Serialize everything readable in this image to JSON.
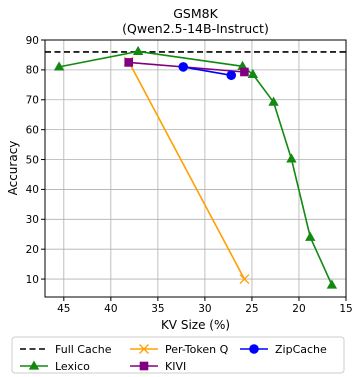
{
  "chart_data": {
    "type": "line",
    "title": "GSM8K",
    "subtitle": "(Qwen2.5-14B-Instruct)",
    "xlabel": "KV Size (%)",
    "ylabel": "Accuracy",
    "xlim": [
      47,
      15
    ],
    "ylim": [
      4,
      90
    ],
    "x_inverted": true,
    "xticks": [
      45,
      40,
      35,
      30,
      25,
      20,
      15
    ],
    "yticks": [
      10,
      20,
      30,
      40,
      50,
      60,
      70,
      80,
      90
    ],
    "grid": true,
    "legend_position": "below",
    "reference_line": {
      "name": "Full Cache",
      "y": 86.0,
      "color": "#000000",
      "style": "dashed"
    },
    "series": [
      {
        "name": "Lexico",
        "color": "#128a12",
        "marker": "triangle",
        "points": [
          [
            45.5,
            81.0
          ],
          [
            37.1,
            86.2
          ],
          [
            26.0,
            81.2
          ],
          [
            24.9,
            78.5
          ],
          [
            22.7,
            69.2
          ],
          [
            20.8,
            50.2
          ],
          [
            18.8,
            24.0
          ],
          [
            16.5,
            8.0
          ]
        ]
      },
      {
        "name": "Per-Token Q",
        "color": "#ffa000",
        "marker": "x",
        "points": [
          [
            38.1,
            82.8
          ],
          [
            25.8,
            10.0
          ]
        ]
      },
      {
        "name": "KIVI",
        "color": "#800080",
        "marker": "square",
        "points": [
          [
            38.1,
            82.5
          ],
          [
            25.8,
            79.3
          ]
        ]
      },
      {
        "name": "ZipCache",
        "color": "#0000ff",
        "marker": "circle",
        "points": [
          [
            32.3,
            81.0
          ],
          [
            27.2,
            78.2
          ]
        ]
      }
    ]
  }
}
